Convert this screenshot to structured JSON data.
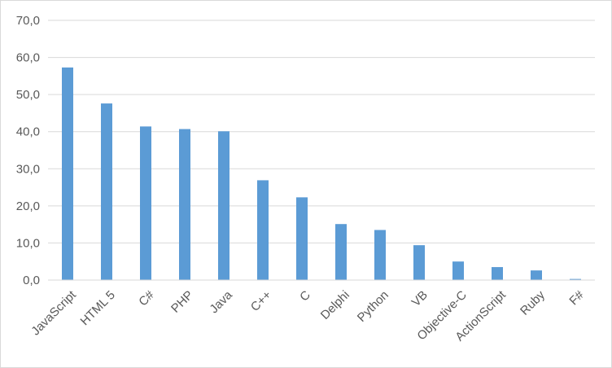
{
  "chart_data": {
    "type": "bar",
    "categories": [
      "JavaScript",
      "HTML 5",
      "C#",
      "PHP",
      "Java",
      "C++",
      "C",
      "Delphi",
      "Python",
      "VB",
      "Objective-C",
      "ActionScript",
      "Ruby",
      "F#"
    ],
    "values": [
      57.3,
      47.6,
      41.4,
      40.7,
      40.1,
      26.9,
      22.3,
      15.1,
      13.5,
      9.4,
      5.0,
      3.5,
      2.6,
      0.3
    ],
    "title": "",
    "xlabel": "",
    "ylabel": "",
    "ylim": [
      0,
      70
    ],
    "yticks": [
      "0,0",
      "10,0",
      "20,0",
      "30,0",
      "40,0",
      "50,0",
      "60,0",
      "70,0"
    ],
    "grid": true,
    "legend": "none",
    "bar_color": "#5b9bd5"
  }
}
